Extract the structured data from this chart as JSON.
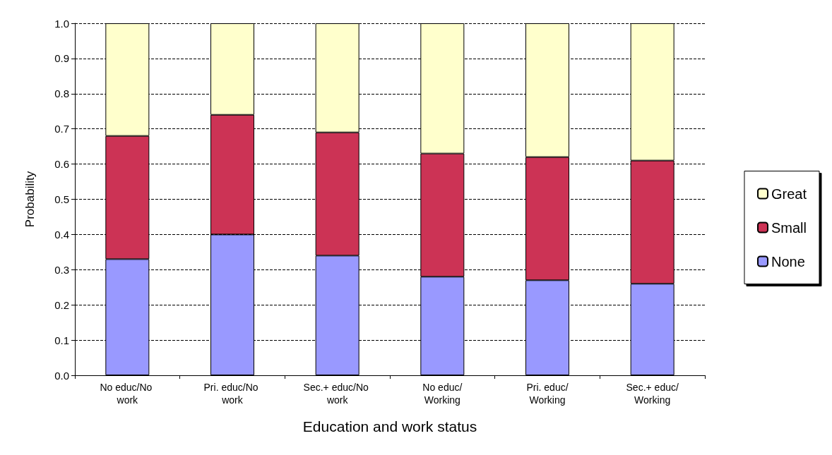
{
  "chart_data": {
    "type": "bar",
    "stacked": true,
    "xlabel": "Education and work status",
    "ylabel": "Probability",
    "categories": [
      "No educ/No work",
      "Pri. educ/No work",
      "Sec.+ educ/No work",
      "No educ/Working",
      "Pri. educ/Working",
      "Sec.+ educ/Working"
    ],
    "series": [
      {
        "name": "None",
        "color": "#9999ff",
        "values": [
          0.33,
          0.4,
          0.34,
          0.28,
          0.27,
          0.26
        ]
      },
      {
        "name": "Small",
        "color": "#cc3355",
        "values": [
          0.35,
          0.34,
          0.35,
          0.35,
          0.35,
          0.35
        ]
      },
      {
        "name": "Great",
        "color": "#ffffcc",
        "values": [
          0.32,
          0.26,
          0.31,
          0.37,
          0.38,
          0.39
        ]
      }
    ],
    "ylim": [
      0,
      1
    ],
    "yticks": [
      {
        "value": 0,
        "label": "0.0"
      },
      0.1,
      0.2,
      0.3,
      0.4,
      0.5,
      0.6,
      0.7,
      0.8,
      0.9,
      {
        "value": 1,
        "label": "1.0"
      }
    ],
    "grid": "y",
    "legend": "right"
  }
}
